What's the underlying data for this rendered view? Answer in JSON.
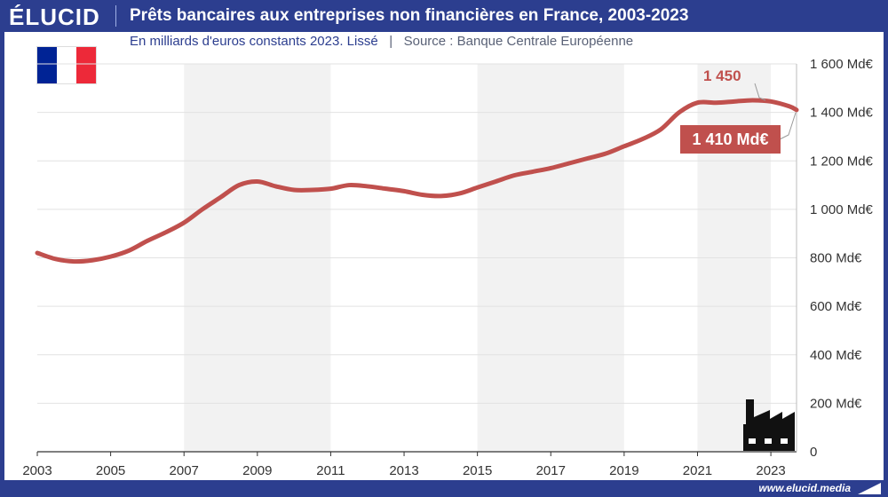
{
  "brand": {
    "logo": "ÉLUCID",
    "footer_url": "www.elucid.media"
  },
  "header": {
    "title": "Prêts bancaires aux entreprises non financières en France, 2003-2023",
    "subtitle": "En milliards d'euros constants 2023. Lissé",
    "source": "Source : Banque Centrale Européenne"
  },
  "colors": {
    "header_bg": "#2c3e8f",
    "line": "#c0504d",
    "band": "#f2f2f2",
    "flag_blue": "#002395",
    "flag_white": "#ffffff",
    "flag_red": "#ed2939"
  },
  "icons": [
    "france-flag-icon",
    "factory-icon"
  ],
  "annotations": {
    "peak_label": "1 450",
    "last_label": "1 410 Md€"
  },
  "chart_data": {
    "type": "line",
    "title": "Prêts bancaires aux entreprises non financières en France, 2003-2023",
    "subtitle": "En milliards d'euros constants 2023. Lissé",
    "xlabel": "",
    "ylabel": "",
    "xlim": [
      2003,
      2023.7
    ],
    "ylim": [
      0,
      1600
    ],
    "x_ticks": [
      2003,
      2005,
      2007,
      2009,
      2011,
      2013,
      2015,
      2017,
      2019,
      2021,
      2023
    ],
    "y_ticks": [
      0,
      200,
      400,
      600,
      800,
      1000,
      1200,
      1400,
      1600
    ],
    "y_tick_labels": [
      "0",
      "200 Md€",
      "400 Md€",
      "600 Md€",
      "800 Md€",
      "1 000 Md€",
      "1 200 Md€",
      "1 400 Md€",
      "1 600 Md€"
    ],
    "grid": true,
    "y_axis_position": "right",
    "shaded_periods": [
      [
        2007,
        2011
      ],
      [
        2015,
        2019
      ],
      [
        2021,
        2023
      ]
    ],
    "series": [
      {
        "x": [
          2003,
          2003.5,
          2004,
          2004.5,
          2005,
          2005.5,
          2006,
          2006.5,
          2007,
          2007.5,
          2008,
          2008.5,
          2009,
          2009.5,
          2010,
          2010.5,
          2011,
          2011.5,
          2012,
          2012.5,
          2013,
          2013.5,
          2014,
          2014.5,
          2015,
          2015.5,
          2016,
          2016.5,
          2017,
          2017.5,
          2018,
          2018.5,
          2019,
          2019.5,
          2020,
          2020.5,
          2021,
          2021.5,
          2022,
          2022.5,
          2023,
          2023.5,
          2023.7
        ],
        "values": [
          820,
          795,
          785,
          790,
          805,
          830,
          870,
          905,
          945,
          1000,
          1050,
          1100,
          1115,
          1095,
          1080,
          1080,
          1085,
          1100,
          1095,
          1085,
          1075,
          1060,
          1055,
          1065,
          1090,
          1115,
          1140,
          1155,
          1170,
          1190,
          1210,
          1230,
          1260,
          1290,
          1330,
          1400,
          1440,
          1440,
          1445,
          1450,
          1445,
          1425,
          1410
        ]
      }
    ]
  }
}
